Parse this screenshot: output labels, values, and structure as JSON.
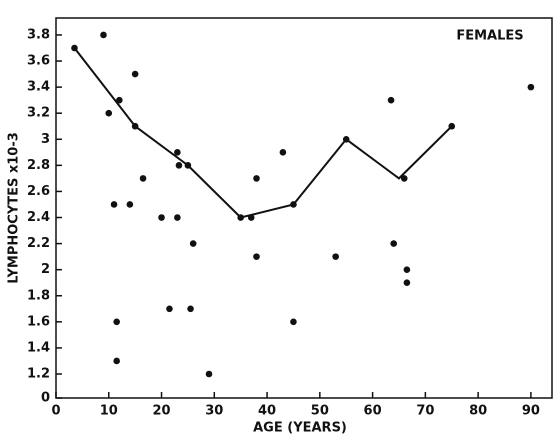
{
  "chart_data": {
    "type": "scatter",
    "annotation": "FEMALES",
    "xlabel": "AGE (YEARS)",
    "ylabel": "LYMPHOCYTES x10-3",
    "xlim": [
      0,
      94
    ],
    "xticks": [
      0,
      10,
      20,
      30,
      40,
      50,
      60,
      70,
      80,
      90
    ],
    "ylim": [
      0,
      3.93
    ],
    "ybreak": 1.2,
    "yticks": [
      0,
      1.2,
      1.4,
      1.6,
      1.8,
      2.0,
      2.2,
      2.4,
      2.6,
      2.8,
      3.0,
      3.2,
      3.4,
      3.6,
      3.8
    ],
    "color": "#111111",
    "series": [
      {
        "mode": "markers",
        "color": "#111111",
        "x": [
          3.5,
          9,
          10,
          11,
          12,
          11.5,
          11.5,
          14,
          15,
          15,
          16.5,
          20,
          21.5,
          23,
          23.3,
          23,
          25,
          25.5,
          26,
          29,
          35,
          37,
          38,
          38,
          43,
          45,
          45,
          53,
          55,
          63.5,
          64,
          66,
          66.5,
          66.5,
          75,
          90
        ],
        "values": [
          3.7,
          3.8,
          3.2,
          2.5,
          3.3,
          1.6,
          1.3,
          2.5,
          3.5,
          3.1,
          2.7,
          2.4,
          1.7,
          2.9,
          2.8,
          2.4,
          2.8,
          1.7,
          2.2,
          1.2,
          2.4,
          2.4,
          2.7,
          2.1,
          2.9,
          1.6,
          2.5,
          2.1,
          3.0,
          3.3,
          2.2,
          2.7,
          2.0,
          1.9,
          3.1,
          3.4
        ]
      },
      {
        "mode": "line",
        "color": "#111111",
        "x": [
          3.5,
          15,
          25,
          35,
          45,
          55,
          65,
          75
        ],
        "values": [
          3.7,
          3.1,
          2.8,
          2.4,
          2.5,
          3.0,
          2.7,
          3.1
        ]
      }
    ]
  }
}
